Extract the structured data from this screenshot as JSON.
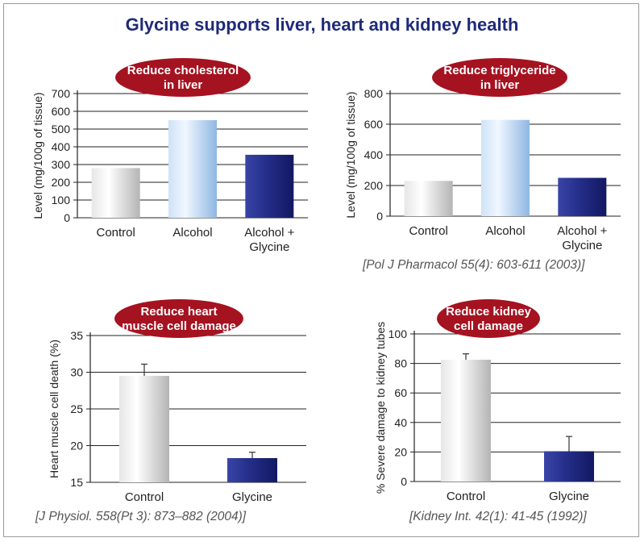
{
  "page": {
    "title": "Glycine supports liver, heart and kidney health"
  },
  "colors": {
    "title": "#1f2a7a",
    "badge": "#a51220",
    "control": "#c8c8c8",
    "alcohol": "#a8c8ec",
    "glycine": "#1e2578"
  },
  "chart_data": [
    {
      "type": "bar",
      "badge": [
        "Reduce cholesterol",
        "in liver"
      ],
      "ylabel": "Level (mg/100g of tissue)",
      "categories": [
        [
          "Control"
        ],
        [
          "Alcohol"
        ],
        [
          "Alcohol +",
          "Glycine"
        ]
      ],
      "values": [
        280,
        550,
        355
      ],
      "ylim": [
        0,
        700
      ],
      "yticks": [
        0,
        100,
        200,
        300,
        400,
        500,
        600,
        700
      ],
      "grid": true
    },
    {
      "type": "bar",
      "badge": [
        "Reduce triglyceride",
        "in liver"
      ],
      "ylabel": "Level (mg/100g of tissue)",
      "categories": [
        [
          "Control"
        ],
        [
          "Alcohol"
        ],
        [
          "Alcohol +",
          "Glycine"
        ]
      ],
      "values": [
        230,
        628,
        250
      ],
      "ylim": [
        0,
        800
      ],
      "yticks": [
        0,
        200,
        400,
        600,
        800
      ],
      "grid": true
    },
    {
      "type": "bar",
      "badge": [
        "Reduce heart",
        "muscle cell damage"
      ],
      "ylabel": "Heart muscle cell death (%)",
      "categories": [
        [
          "Control"
        ],
        [
          "Glycine"
        ]
      ],
      "values": [
        29.5,
        18.3
      ],
      "errors": [
        1.6,
        0.8
      ],
      "ylim": [
        15,
        35
      ],
      "yticks": [
        15,
        20,
        25,
        30,
        35
      ],
      "grid": true
    },
    {
      "type": "bar",
      "badge": [
        "Reduce kidney",
        "cell damage"
      ],
      "ylabel": "% Severe damage to kidney tubes",
      "categories": [
        [
          "Control"
        ],
        [
          "Glycine"
        ]
      ],
      "values": [
        82.5,
        20.5
      ],
      "errors": [
        4,
        10
      ],
      "ylim": [
        0,
        100
      ],
      "yticks": [
        0,
        20,
        40,
        60,
        80,
        100
      ],
      "grid": true
    }
  ],
  "citations": {
    "liver": "[Pol J Pharmacol 55(4): 603-611 (2003)]",
    "heart": "[J Physiol. 558(Pt 3): 873–882 (2004)]",
    "kidney": "[Kidney Int. 42(1): 41-45 (1992)]"
  }
}
